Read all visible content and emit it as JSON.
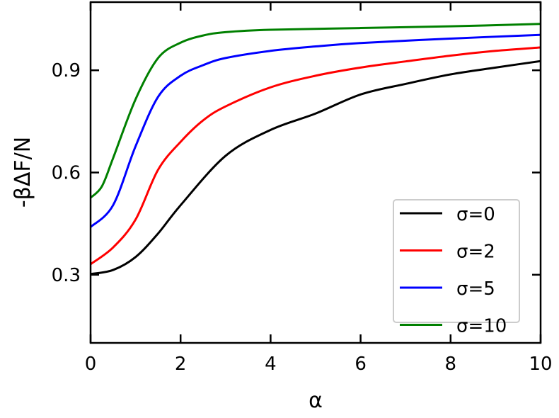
{
  "chart_data": {
    "type": "line",
    "xlabel": "α",
    "ylabel": "-βΔF/N",
    "xlim": [
      0,
      10
    ],
    "ylim": [
      0.1,
      1.1
    ],
    "xticks": [
      "0",
      "2",
      "4",
      "6",
      "8",
      "10"
    ],
    "yticks": [
      "0.3",
      "0.6",
      "0.9"
    ],
    "grid": false,
    "legend_position": "lower-right",
    "series": [
      {
        "name": "σ=0",
        "color": "#000000",
        "x": [
          0,
          0.5,
          1,
          1.5,
          2,
          3,
          4,
          5,
          6,
          7,
          8,
          9,
          10
        ],
        "y": [
          0.302,
          0.314,
          0.352,
          0.421,
          0.504,
          0.649,
          0.725,
          0.773,
          0.829,
          0.86,
          0.888,
          0.908,
          0.927
        ]
      },
      {
        "name": "σ=2",
        "color": "#ff0000",
        "x": [
          0,
          0.5,
          1,
          1.5,
          2,
          2.5,
          3,
          4,
          5,
          6,
          7,
          8,
          9,
          10
        ],
        "y": [
          0.331,
          0.38,
          0.462,
          0.608,
          0.69,
          0.753,
          0.794,
          0.85,
          0.884,
          0.908,
          0.926,
          0.943,
          0.957,
          0.967
        ]
      },
      {
        "name": "σ=5",
        "color": "#0000ff",
        "x": [
          0,
          0.5,
          1,
          1.5,
          2,
          2.5,
          3,
          4,
          5,
          6,
          8,
          10
        ],
        "y": [
          0.44,
          0.504,
          0.677,
          0.822,
          0.884,
          0.915,
          0.936,
          0.957,
          0.97,
          0.98,
          0.993,
          1.004
        ]
      },
      {
        "name": "σ=10",
        "color": "#008000",
        "x": [
          0,
          0.25,
          0.5,
          1,
          1.5,
          2,
          2.5,
          3,
          4,
          6,
          8,
          10
        ],
        "y": [
          0.526,
          0.559,
          0.642,
          0.815,
          0.936,
          0.981,
          1.002,
          1.012,
          1.019,
          1.024,
          1.029,
          1.036
        ]
      }
    ]
  }
}
